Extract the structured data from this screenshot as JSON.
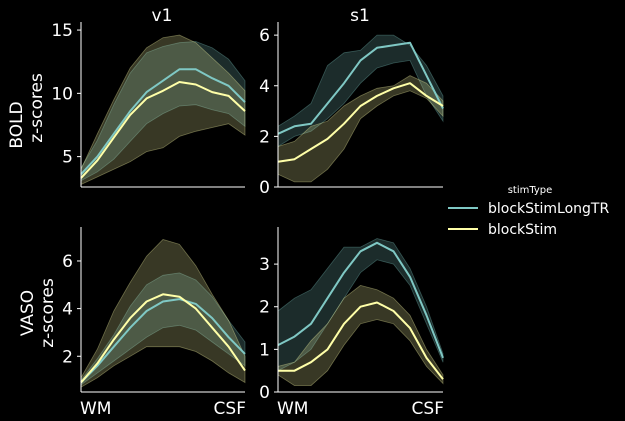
{
  "chart_data": {
    "type": "line",
    "column_titles": [
      "v1",
      "s1"
    ],
    "row_labels": [
      [
        "BOLD",
        "z-scores"
      ],
      [
        "VASO",
        "z-scores"
      ]
    ],
    "x_tick_labels": [
      "WM",
      "CSF"
    ],
    "n_points": 11,
    "legend": {
      "title": "stimType",
      "placement": "right",
      "entries": [
        "blockStimLongTR",
        "blockStim"
      ]
    },
    "colors": {
      "blockStimLongTR": "#7fc8c4",
      "blockStim": "#ffffa8",
      "axis": "#ffffff",
      "background": "#000000"
    },
    "panels": [
      {
        "row": 0,
        "col": 0,
        "ylim": [
          2.6,
          15.4
        ],
        "yticks": [
          5,
          10,
          15
        ],
        "series": [
          {
            "name": "blockStimLongTR",
            "values": [
              3.6,
              5.0,
              6.8,
              8.6,
              10.1,
              11.0,
              11.9,
              11.9,
              11.2,
              10.6,
              9.3
            ],
            "lower": [
              3.1,
              3.8,
              4.8,
              6.2,
              7.6,
              8.4,
              9.0,
              9.1,
              8.7,
              8.4,
              7.4
            ],
            "upper": [
              4.1,
              6.3,
              9.1,
              11.6,
              13.2,
              13.7,
              14.0,
              14.1,
              13.6,
              12.7,
              11.0
            ]
          },
          {
            "name": "blockStim",
            "values": [
              3.3,
              4.7,
              6.5,
              8.3,
              9.6,
              10.2,
              10.9,
              10.7,
              10.1,
              9.8,
              8.6
            ],
            "lower": [
              2.8,
              3.4,
              4.0,
              4.6,
              5.4,
              5.7,
              6.6,
              7.0,
              7.3,
              7.6,
              6.7
            ],
            "upper": [
              4.0,
              6.8,
              9.5,
              12.0,
              13.6,
              14.4,
              14.6,
              14.0,
              12.8,
              11.6,
              10.2
            ]
          }
        ]
      },
      {
        "row": 0,
        "col": 1,
        "ylim": [
          0,
          6.4
        ],
        "yticks": [
          0,
          2,
          4,
          6
        ],
        "series": [
          {
            "name": "blockStimLongTR",
            "values": [
              2.1,
              2.4,
              2.5,
              3.3,
              4.1,
              5.0,
              5.5,
              5.6,
              5.7,
              4.4,
              3.1
            ],
            "lower": [
              1.6,
              2.0,
              2.2,
              2.7,
              3.3,
              4.1,
              4.7,
              4.9,
              5.0,
              3.6,
              2.6
            ],
            "upper": [
              2.4,
              2.8,
              3.3,
              4.8,
              5.3,
              5.4,
              6.0,
              6.0,
              5.6,
              4.8,
              3.6
            ]
          },
          {
            "name": "blockStim",
            "values": [
              1.0,
              1.1,
              1.5,
              1.9,
              2.5,
              3.2,
              3.6,
              3.9,
              4.1,
              3.6,
              3.2
            ],
            "lower": [
              0.5,
              0.2,
              0.2,
              0.7,
              1.5,
              2.7,
              3.2,
              3.6,
              3.8,
              3.5,
              2.8
            ],
            "upper": [
              1.6,
              1.8,
              2.4,
              2.6,
              3.2,
              3.6,
              3.9,
              4.0,
              4.4,
              4.1,
              3.4
            ]
          }
        ]
      },
      {
        "row": 1,
        "col": 0,
        "ylim": [
          0.5,
          7.3
        ],
        "yticks": [
          2,
          4,
          6
        ],
        "series": [
          {
            "name": "blockStimLongTR",
            "values": [
              0.9,
              1.6,
              2.4,
              3.2,
              3.9,
              4.3,
              4.4,
              4.2,
              3.6,
              2.8,
              2.1
            ],
            "lower": [
              0.8,
              1.3,
              1.8,
              2.3,
              2.8,
              3.2,
              3.3,
              3.1,
              2.6,
              2.1,
              1.6
            ],
            "upper": [
              1.0,
              1.9,
              2.9,
              4.1,
              5.0,
              5.4,
              5.5,
              5.2,
              4.5,
              3.5,
              2.6
            ]
          },
          {
            "name": "blockStim",
            "values": [
              0.9,
              1.7,
              2.7,
              3.6,
              4.3,
              4.6,
              4.5,
              4.0,
              3.2,
              2.4,
              1.4
            ],
            "lower": [
              0.7,
              1.1,
              1.6,
              2.0,
              2.4,
              2.4,
              2.4,
              2.2,
              1.8,
              1.3,
              0.9
            ],
            "upper": [
              1.1,
              2.3,
              3.9,
              5.1,
              6.2,
              6.9,
              6.7,
              5.8,
              4.6,
              3.5,
              2.0
            ]
          }
        ]
      },
      {
        "row": 1,
        "col": 1,
        "ylim": [
          0,
          3.8
        ],
        "yticks": [
          0,
          1,
          2,
          3
        ],
        "series": [
          {
            "name": "blockStimLongTR",
            "values": [
              1.1,
              1.3,
              1.6,
              2.2,
              2.8,
              3.3,
              3.5,
              3.3,
              2.7,
              1.8,
              0.8
            ],
            "lower": [
              0.5,
              0.7,
              1.0,
              1.6,
              2.2,
              2.8,
              3.1,
              3.0,
              2.5,
              1.6,
              0.7
            ],
            "upper": [
              1.9,
              2.2,
              2.4,
              2.9,
              3.4,
              3.4,
              3.6,
              3.5,
              2.9,
              2.0,
              0.9
            ]
          },
          {
            "name": "blockStim",
            "values": [
              0.5,
              0.5,
              0.7,
              1.0,
              1.6,
              2.0,
              2.1,
              1.9,
              1.5,
              0.8,
              0.3
            ],
            "lower": [
              0.4,
              0.15,
              0.15,
              0.5,
              1.1,
              1.6,
              1.7,
              1.6,
              1.2,
              0.6,
              0.2
            ],
            "upper": [
              0.6,
              0.7,
              1.2,
              1.6,
              2.2,
              2.5,
              2.4,
              2.2,
              1.8,
              1.0,
              0.4
            ]
          }
        ]
      }
    ]
  }
}
